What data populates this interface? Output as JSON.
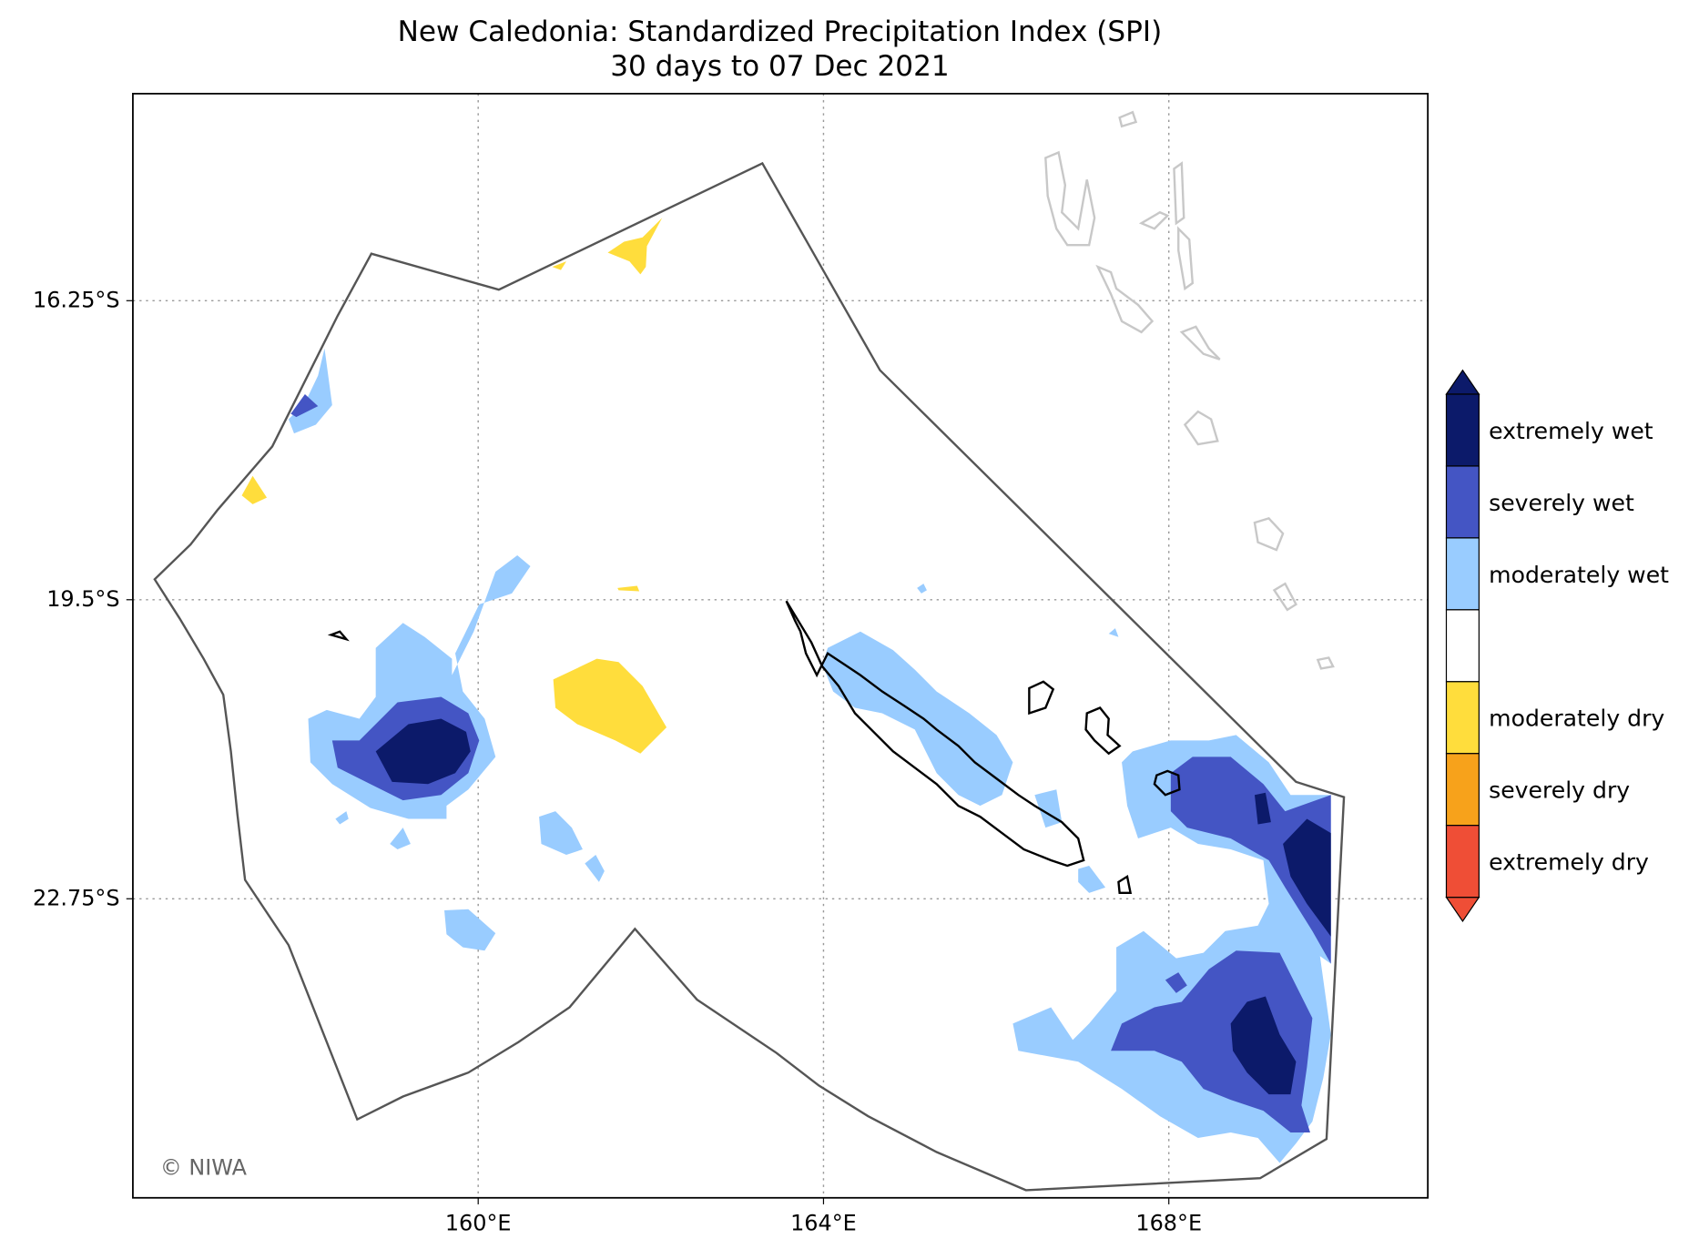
{
  "header": {
    "title": "New Caledonia: Standardized Precipitation Index (SPI)",
    "subtitle": "30 days to 07 Dec 2021"
  },
  "map": {
    "xlim": [
      156,
      171
    ],
    "ylim": [
      -26,
      -14
    ],
    "xticks": [
      {
        "value": 160,
        "label": "160°E"
      },
      {
        "value": 164,
        "label": "164°E"
      },
      {
        "value": 168,
        "label": "168°E"
      }
    ],
    "yticks": [
      {
        "value": -16.25,
        "label": "16.25°S"
      },
      {
        "value": -19.5,
        "label": "19.5°S"
      },
      {
        "value": -22.75,
        "label": "22.75°S"
      }
    ],
    "grid": true
  },
  "legend": [
    {
      "label": "extremely wet",
      "color": "#0c1a6a"
    },
    {
      "label": "severely wet",
      "color": "#4455c4"
    },
    {
      "label": "moderately wet",
      "color": "#99ccff"
    },
    {
      "label": null,
      "color": "#ffffff"
    },
    {
      "label": "moderately dry",
      "color": "#ffdd3c"
    },
    {
      "label": "severely dry",
      "color": "#f7a21b"
    },
    {
      "label": "extremely dry",
      "color": "#ef4e36"
    }
  ],
  "credit": "© NIWA"
}
